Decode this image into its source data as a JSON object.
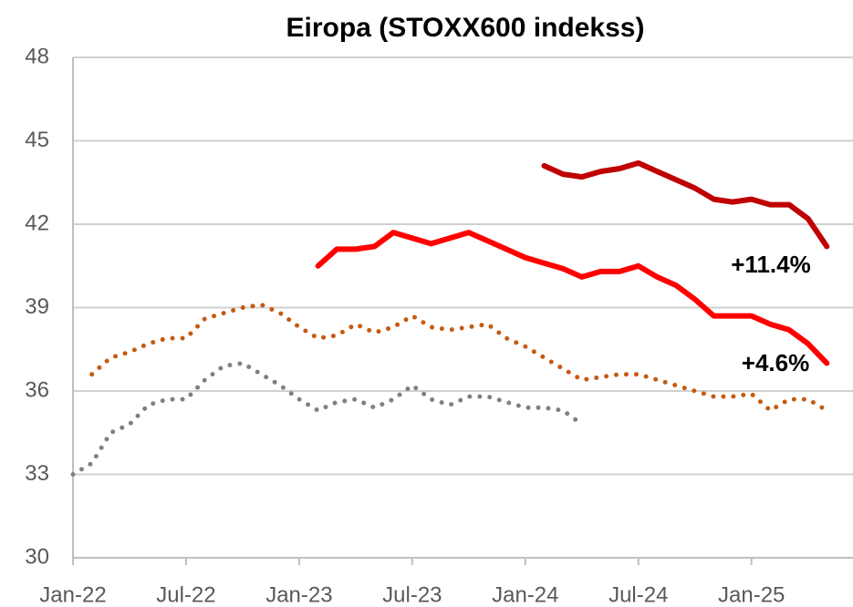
{
  "chart_data": {
    "type": "line",
    "title": "Eiropa (STOXX600 indekss)",
    "annotations": [
      "+11.4%",
      "+4.6%"
    ],
    "xlim": [
      "2022-01",
      "2025-06"
    ],
    "xticks": [
      {
        "value": "2022-01",
        "label": "Jan-22"
      },
      {
        "value": "2022-07",
        "label": "Jul-22"
      },
      {
        "value": "2023-01",
        "label": "Jan-23"
      },
      {
        "value": "2023-07",
        "label": "Jul-23"
      },
      {
        "value": "2024-01",
        "label": "Jan-24"
      },
      {
        "value": "2024-07",
        "label": "Jul-24"
      },
      {
        "value": "2025-01",
        "label": "Jan-25"
      }
    ],
    "ylim": [
      30,
      48
    ],
    "yticks": [
      30,
      33,
      36,
      39,
      42,
      45,
      48
    ],
    "grid": true,
    "series": [
      {
        "color": "#808080",
        "style": "dotted",
        "x": [
          "2022-01",
          "2022-02",
          "2022-03",
          "2022-04",
          "2022-05",
          "2022-06",
          "2022-07",
          "2022-08",
          "2022-09",
          "2022-10",
          "2022-11",
          "2022-12",
          "2023-01",
          "2023-02",
          "2023-03",
          "2023-04",
          "2023-05",
          "2023-06",
          "2023-07",
          "2023-08",
          "2023-09",
          "2023-10",
          "2023-11",
          "2023-12",
          "2024-01",
          "2024-02",
          "2024-03",
          "2024-04"
        ],
        "values": [
          33.0,
          33.4,
          34.5,
          34.8,
          35.5,
          35.7,
          35.7,
          36.4,
          36.9,
          37.0,
          36.6,
          36.2,
          35.7,
          35.3,
          35.6,
          35.7,
          35.4,
          35.7,
          36.2,
          35.7,
          35.5,
          35.8,
          35.8,
          35.6,
          35.4,
          35.4,
          35.3,
          34.8
        ]
      },
      {
        "color": "#c55a11",
        "style": "dotted",
        "x": [
          "2022-02",
          "2022-03",
          "2022-04",
          "2022-05",
          "2022-06",
          "2022-07",
          "2022-08",
          "2022-09",
          "2022-10",
          "2022-11",
          "2022-12",
          "2023-01",
          "2023-02",
          "2023-03",
          "2023-04",
          "2023-05",
          "2023-06",
          "2023-07",
          "2023-08",
          "2023-09",
          "2023-10",
          "2023-11",
          "2023-12",
          "2024-01",
          "2024-02",
          "2024-03",
          "2024-04",
          "2024-05",
          "2024-06",
          "2024-07",
          "2024-08",
          "2024-09",
          "2024-10",
          "2024-11",
          "2024-12",
          "2025-01",
          "2025-02",
          "2025-03",
          "2025-04",
          "2025-05"
        ],
        "values": [
          36.6,
          37.2,
          37.4,
          37.7,
          37.9,
          37.9,
          38.6,
          38.8,
          39.0,
          39.1,
          38.8,
          38.3,
          37.9,
          38.0,
          38.4,
          38.1,
          38.3,
          38.7,
          38.3,
          38.2,
          38.3,
          38.4,
          37.9,
          37.6,
          37.2,
          36.8,
          36.4,
          36.5,
          36.6,
          36.6,
          36.4,
          36.2,
          36.0,
          35.8,
          35.8,
          35.9,
          35.3,
          35.7,
          35.7,
          35.3
        ]
      },
      {
        "color": "#ff0000",
        "style": "solid",
        "x": [
          "2023-02",
          "2023-03",
          "2023-04",
          "2023-05",
          "2023-06",
          "2023-07",
          "2023-08",
          "2023-09",
          "2023-10",
          "2023-11",
          "2023-12",
          "2024-01",
          "2024-02",
          "2024-03",
          "2024-04",
          "2024-05",
          "2024-06",
          "2024-07",
          "2024-08",
          "2024-09",
          "2024-10",
          "2024-11",
          "2024-12",
          "2025-01",
          "2025-02",
          "2025-03",
          "2025-04",
          "2025-05"
        ],
        "values": [
          40.5,
          41.1,
          41.1,
          41.2,
          41.7,
          41.5,
          41.3,
          41.5,
          41.7,
          41.4,
          41.1,
          40.8,
          40.6,
          40.4,
          40.1,
          40.3,
          40.3,
          40.5,
          40.1,
          39.8,
          39.3,
          38.7,
          38.7,
          38.7,
          38.4,
          38.2,
          37.7,
          37.0
        ]
      },
      {
        "color": "#c00000",
        "style": "solid",
        "x": [
          "2024-02",
          "2024-03",
          "2024-04",
          "2024-05",
          "2024-06",
          "2024-07",
          "2024-08",
          "2024-09",
          "2024-10",
          "2024-11",
          "2024-12",
          "2025-01",
          "2025-02",
          "2025-03",
          "2025-04",
          "2025-05"
        ],
        "values": [
          44.1,
          43.8,
          43.7,
          43.9,
          44.0,
          44.2,
          43.9,
          43.6,
          43.3,
          42.9,
          42.8,
          42.9,
          42.7,
          42.7,
          42.2,
          41.2
        ]
      }
    ]
  }
}
